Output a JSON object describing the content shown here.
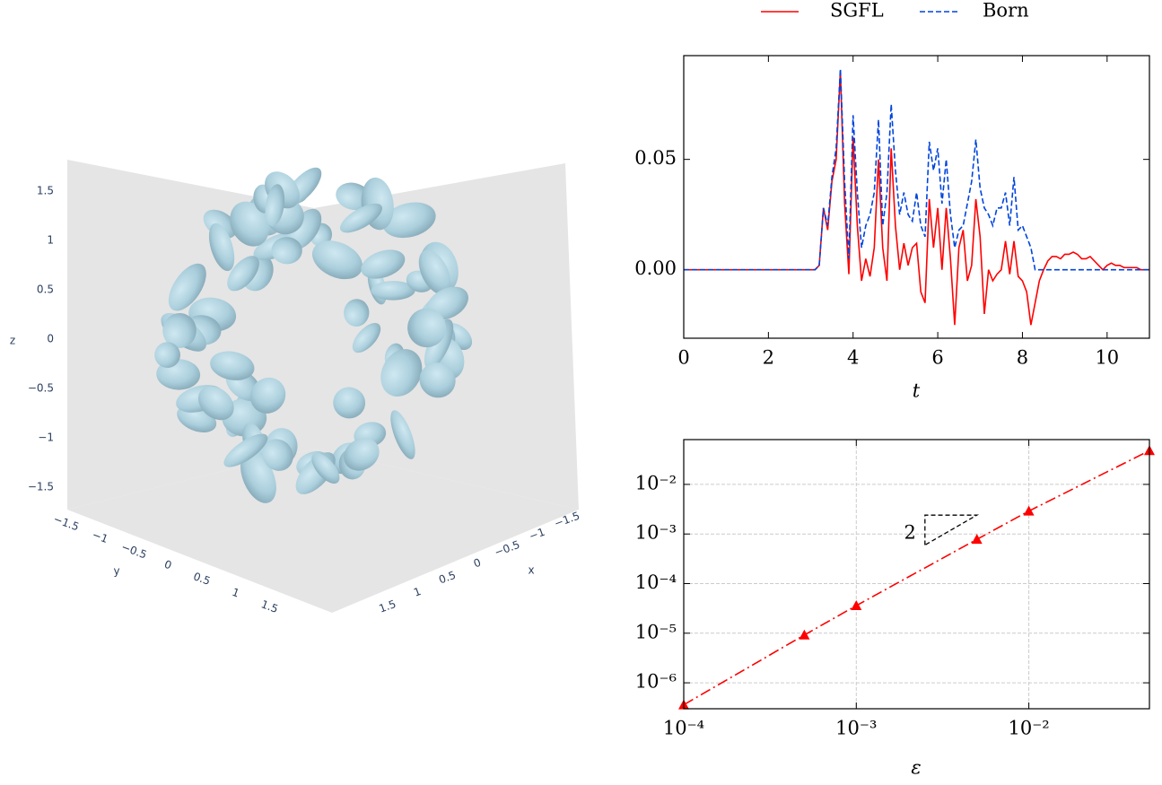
{
  "chart_data": [
    {
      "type": "mesh3d",
      "xlabel": "x",
      "ylabel": "y",
      "zlabel": "z",
      "color": "#add8e6",
      "xlim": [
        -1.8,
        1.8
      ],
      "ylim": [
        -1.8,
        1.8
      ],
      "zlim": [
        -1.8,
        1.8
      ],
      "xticks": [
        {
          "value": -1.5,
          "label": "−1.5"
        },
        {
          "value": -1,
          "label": "−1"
        },
        {
          "value": -0.5,
          "label": "−0.5"
        },
        0,
        0.5,
        1,
        1.5
      ],
      "yticks": [
        {
          "value": -1.5,
          "label": "−1.5"
        },
        {
          "value": -1,
          "label": "−1"
        },
        {
          "value": -0.5,
          "label": "−0.5"
        },
        0,
        0.5,
        1,
        1.5
      ],
      "zticks": [
        {
          "value": -1.5,
          "label": "−1.5"
        },
        {
          "value": -1,
          "label": "−1"
        },
        {
          "value": -0.5,
          "label": "−0.5"
        },
        0,
        0.5,
        1,
        1.5
      ]
    },
    {
      "type": "line",
      "legend": "upper center outside",
      "xlabel": "t",
      "x": [
        0,
        3.1,
        3.2,
        3.3,
        3.4,
        3.5,
        3.6,
        3.7,
        3.8,
        3.9,
        4.0,
        4.1,
        4.2,
        4.3,
        4.4,
        4.5,
        4.6,
        4.7,
        4.8,
        4.9,
        5.0,
        5.1,
        5.2,
        5.3,
        5.4,
        5.5,
        5.6,
        5.7,
        5.8,
        5.9,
        6.0,
        6.1,
        6.2,
        6.3,
        6.4,
        6.5,
        6.6,
        6.7,
        6.8,
        6.9,
        7.0,
        7.1,
        7.2,
        7.3,
        7.4,
        7.5,
        7.6,
        7.7,
        7.8,
        7.9,
        8.0,
        8.1,
        8.2,
        8.3,
        8.4,
        8.5,
        8.6,
        8.7,
        8.8,
        8.9,
        9.0,
        9.1,
        9.2,
        9.3,
        9.4,
        9.5,
        9.6,
        9.7,
        9.8,
        9.9,
        10.0,
        10.1,
        10.2,
        10.3,
        10.4,
        10.5,
        10.6,
        10.7,
        10.8,
        10.9,
        11.0
      ],
      "series": [
        {
          "name": "SGFL",
          "color": "#ff0000",
          "dash": "solid",
          "values": [
            0,
            0,
            0.002,
            0.028,
            0.018,
            0.04,
            0.05,
            0.09,
            0.03,
            -0.002,
            0.06,
            0.02,
            -0.005,
            0.005,
            -0.003,
            0.01,
            0.05,
            0.01,
            -0.005,
            0.055,
            0.02,
            0,
            0.012,
            0.002,
            0.01,
            0.012,
            -0.01,
            -0.015,
            0.032,
            0.01,
            0.028,
            0,
            0.028,
            0.005,
            -0.025,
            0.01,
            0.018,
            -0.005,
            0.002,
            0.032,
            0.015,
            -0.02,
            0,
            -0.005,
            -0.002,
            0,
            0.013,
            -0.002,
            0.013,
            -0.003,
            -0.005,
            -0.01,
            -0.025,
            -0.015,
            -0.005,
            0,
            0.004,
            0.006,
            0.006,
            0.005,
            0.007,
            0.007,
            0.008,
            0.007,
            0.005,
            0.005,
            0.006,
            0.004,
            0.002,
            0,
            0.002,
            0.003,
            0.002,
            0.002,
            0.001,
            0.001,
            0.001,
            0.001,
            0,
            0,
            0
          ]
        },
        {
          "name": "Born",
          "color": "#0044dd",
          "dash": "dashed",
          "values": [
            0,
            0,
            0.002,
            0.028,
            0.02,
            0.042,
            0.055,
            0.091,
            0.04,
            0.005,
            0.07,
            0.035,
            0.01,
            0.02,
            0.025,
            0.035,
            0.068,
            0.02,
            0.035,
            0.075,
            0.045,
            0.025,
            0.035,
            0.025,
            0.022,
            0.035,
            0.02,
            0.015,
            0.058,
            0.045,
            0.055,
            0.03,
            0.05,
            0.025,
            0.01,
            0.018,
            0.02,
            0.03,
            0.04,
            0.059,
            0.037,
            0.028,
            0.025,
            0.02,
            0.028,
            0.028,
            0.035,
            0.02,
            0.042,
            0.018,
            0.02,
            0.015,
            0.01,
            0,
            0,
            0,
            0,
            0,
            0,
            0,
            0,
            0,
            0,
            0,
            0,
            0,
            0,
            0,
            0,
            0,
            0,
            0,
            0,
            0,
            0,
            0,
            0,
            0,
            0,
            0,
            0
          ]
        }
      ],
      "xlim": [
        0,
        11
      ],
      "ylim": [
        -0.031,
        0.097
      ],
      "xticks": [
        0,
        2,
        4,
        6,
        8,
        10
      ],
      "yticks": [
        {
          "value": 0,
          "label": "0.00"
        },
        {
          "value": 0.05,
          "label": "0.05"
        }
      ]
    },
    {
      "type": "line",
      "log_x": true,
      "log_y": true,
      "grid": true,
      "xlabel": "ε",
      "color": "#ff0000",
      "dash": "dashdot",
      "marker": "triangle",
      "x": [
        0.0001,
        0.0005,
        0.001,
        0.005,
        0.01,
        0.05
      ],
      "values": [
        3.6e-07,
        9.2e-06,
        3.6e-05,
        0.00078,
        0.0029,
        0.048
      ],
      "xlim": [
        0.0001,
        0.05
      ],
      "ylim": [
        3e-07,
        0.08
      ],
      "xticks": [
        {
          "value": 0.0001,
          "label": "10⁻⁴"
        },
        {
          "value": 0.001,
          "label": "10⁻³"
        },
        {
          "value": 0.01,
          "label": "10⁻²"
        }
      ],
      "yticks": [
        {
          "value": 1e-06,
          "label": "10⁻⁶"
        },
        {
          "value": 1e-05,
          "label": "10⁻⁵"
        },
        {
          "value": 0.0001,
          "label": "10⁻⁴"
        },
        {
          "value": 0.001,
          "label": "10⁻³"
        },
        {
          "value": 0.01,
          "label": "10⁻²"
        }
      ],
      "annotation": {
        "text": "2",
        "x": [
          0.0025,
          0.005
        ],
        "y": [
          0.0006,
          0.0024
        ]
      }
    }
  ]
}
